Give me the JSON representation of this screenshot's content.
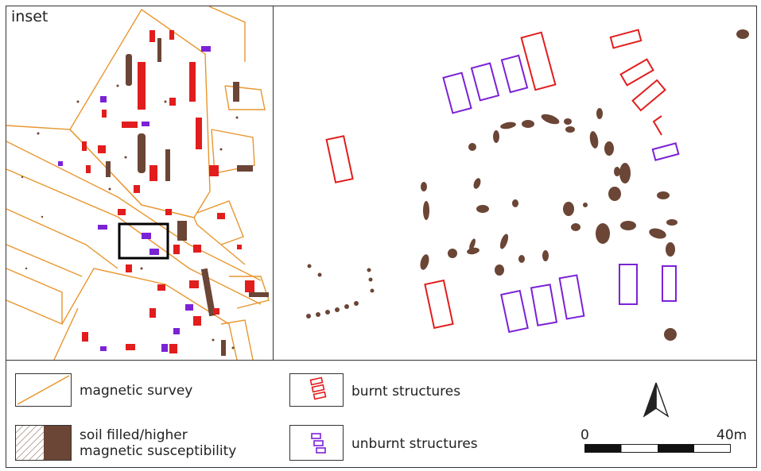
{
  "inset": {
    "label": "inset"
  },
  "legend": {
    "magnetic_survey": "magnetic survey",
    "soil_line1": "soil filled/higher",
    "soil_line2": "magnetic susceptibility",
    "burnt": "burnt structures",
    "unburnt": "unburnt structures"
  },
  "scale": {
    "start": "0",
    "end": "40m"
  },
  "colors": {
    "survey": "#e8962e",
    "burnt": "#e11d1d",
    "unburnt": "#7b22d6",
    "soil": "#6b4535"
  }
}
